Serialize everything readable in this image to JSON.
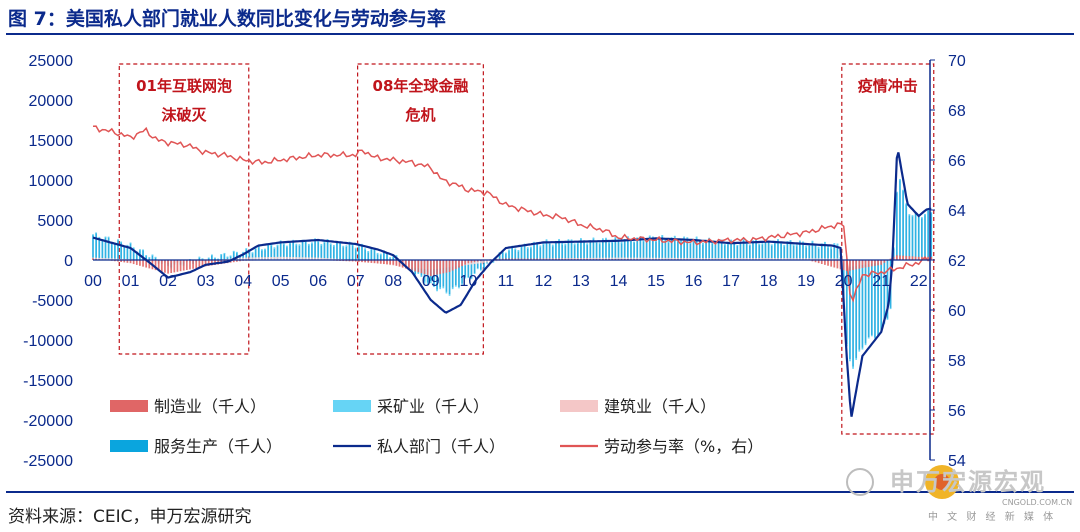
{
  "title": "图 7：美国私人部门就业人数同比变化与劳动参与率",
  "source": "资料来源：CEIC，申万宏源研究",
  "watermark": {
    "text": "申万宏源宏观",
    "sub": "中 文 财 经 新 媒 体",
    "site": "CNGOLD.COM.CN"
  },
  "colors": {
    "title": "#0b2a8c",
    "manufacturing": "#e06666",
    "mining": "#66d4f5",
    "construction": "#f4c7c7",
    "services": "#0aa5de",
    "private": "#0b2a8c",
    "lfpr": "#e05555",
    "annotation": "#c0141b"
  },
  "chart_data": {
    "type": "bar+line",
    "x_tick_labels": [
      "00",
      "01",
      "02",
      "03",
      "04",
      "05",
      "06",
      "07",
      "08",
      "09",
      "10",
      "11",
      "12",
      "13",
      "14",
      "15",
      "16",
      "17",
      "18",
      "19",
      "20",
      "21",
      "22"
    ],
    "left_axis": {
      "range": [
        -25000,
        25000
      ],
      "ticks": [
        "25000",
        "20000",
        "15000",
        "10000",
        "5000",
        "0",
        "-5000",
        "-10000",
        "-15000",
        "-20000",
        "-25000"
      ]
    },
    "right_axis": {
      "range": [
        54,
        70
      ],
      "ticks": [
        "70",
        "68",
        "66",
        "64",
        "62",
        "60",
        "58",
        "56",
        "54"
      ]
    },
    "annotations": [
      {
        "line1": "01年互联网泡",
        "line2": "沫破灭",
        "x_range": [
          0.7,
          4.15
        ]
      },
      {
        "line1": "08年全球金融",
        "line2": "危机",
        "x_range": [
          7.05,
          10.4
        ]
      },
      {
        "line1": "疫情冲击",
        "line2": "",
        "x_range": [
          19.95,
          22.4
        ]
      }
    ],
    "legend": [
      {
        "key": "manufacturing",
        "label": "制造业（千人）",
        "kind": "bar"
      },
      {
        "key": "mining",
        "label": "采矿业（千人）",
        "kind": "bar"
      },
      {
        "key": "construction",
        "label": "建筑业（千人）",
        "kind": "bar"
      },
      {
        "key": "services",
        "label": "服务生产（千人）",
        "kind": "bar"
      },
      {
        "key": "private",
        "label": "私人部门（千人）",
        "kind": "line"
      },
      {
        "key": "lfpr",
        "label": "劳动参与率（%，右）",
        "kind": "line"
      }
    ],
    "series": {
      "private_keypoints": [
        [
          0,
          2800
        ],
        [
          1,
          1500
        ],
        [
          1.5,
          -300
        ],
        [
          2,
          -2200
        ],
        [
          2.6,
          -1500
        ],
        [
          3,
          -600
        ],
        [
          3.6,
          -200
        ],
        [
          4,
          700
        ],
        [
          4.4,
          1800
        ],
        [
          5,
          2200
        ],
        [
          6,
          2500
        ],
        [
          7,
          2000
        ],
        [
          7.6,
          1300
        ],
        [
          8,
          600
        ],
        [
          8.5,
          -1500
        ],
        [
          9,
          -5000
        ],
        [
          9.4,
          -6600
        ],
        [
          9.8,
          -5600
        ],
        [
          10.2,
          -2500
        ],
        [
          10.6,
          -300
        ],
        [
          11,
          1500
        ],
        [
          12,
          2200
        ],
        [
          13,
          2300
        ],
        [
          14,
          2400
        ],
        [
          15,
          2700
        ],
        [
          16,
          2500
        ],
        [
          17,
          2100
        ],
        [
          18,
          2300
        ],
        [
          19,
          2000
        ],
        [
          19.7,
          1800
        ],
        [
          19.92,
          1500
        ],
        [
          20.08,
          -12000
        ],
        [
          20.2,
          -19800
        ],
        [
          20.5,
          -12000
        ],
        [
          21,
          -9000
        ],
        [
          21.2,
          -5500
        ],
        [
          21.3,
          0
        ],
        [
          21.43,
          14200
        ],
        [
          21.55,
          11000
        ],
        [
          21.7,
          7000
        ],
        [
          22,
          5500
        ],
        [
          22.2,
          6300
        ],
        [
          22.3,
          6400
        ]
      ],
      "services_keypoints": [
        [
          0,
          3200
        ],
        [
          1,
          1800
        ],
        [
          2,
          -600
        ],
        [
          3,
          200
        ],
        [
          4,
          1000
        ],
        [
          5,
          2000
        ],
        [
          6,
          2300
        ],
        [
          7,
          1800
        ],
        [
          8,
          500
        ],
        [
          9,
          -3000
        ],
        [
          9.5,
          -4000
        ],
        [
          10,
          -2200
        ],
        [
          10.6,
          -200
        ],
        [
          11,
          1200
        ],
        [
          12,
          2100
        ],
        [
          13,
          2300
        ],
        [
          14,
          2500
        ],
        [
          15,
          2800
        ],
        [
          16,
          2600
        ],
        [
          17,
          2200
        ],
        [
          18,
          2300
        ],
        [
          19,
          2100
        ],
        [
          19.9,
          1800
        ],
        [
          20.1,
          -12000
        ],
        [
          20.25,
          -13000
        ],
        [
          20.6,
          -10000
        ],
        [
          21,
          -9000
        ],
        [
          21.25,
          -6000
        ],
        [
          21.32,
          0
        ],
        [
          21.45,
          11500
        ],
        [
          21.7,
          6000
        ],
        [
          22,
          5500
        ],
        [
          22.3,
          6000
        ]
      ],
      "manufacturing_keypoints": [
        [
          0,
          200
        ],
        [
          1,
          -400
        ],
        [
          2,
          -1700
        ],
        [
          3,
          -800
        ],
        [
          4,
          -100
        ],
        [
          5,
          0
        ],
        [
          6,
          0
        ],
        [
          7,
          -200
        ],
        [
          8,
          -600
        ],
        [
          9,
          -2000
        ],
        [
          9.5,
          -1500
        ],
        [
          10,
          -400
        ],
        [
          10.6,
          100
        ],
        [
          11,
          200
        ],
        [
          15,
          100
        ],
        [
          19,
          50
        ],
        [
          20.1,
          -1400
        ],
        [
          20.5,
          -1000
        ],
        [
          21,
          -600
        ],
        [
          21.4,
          600
        ],
        [
          22,
          400
        ],
        [
          22.3,
          400
        ]
      ],
      "mining_keypoints": [
        [
          0,
          0
        ],
        [
          1,
          30
        ],
        [
          2,
          -60
        ],
        [
          5,
          100
        ],
        [
          8,
          80
        ],
        [
          9,
          -120
        ],
        [
          10,
          0
        ],
        [
          12,
          130
        ],
        [
          14,
          90
        ],
        [
          15,
          -80
        ],
        [
          16,
          -150
        ],
        [
          17,
          0
        ],
        [
          20.1,
          -150
        ],
        [
          21.4,
          60
        ],
        [
          22.3,
          50
        ]
      ],
      "construction_keypoints": [
        [
          0,
          300
        ],
        [
          1,
          100
        ],
        [
          2,
          -400
        ],
        [
          3,
          -100
        ],
        [
          4,
          300
        ],
        [
          5,
          400
        ],
        [
          6,
          300
        ],
        [
          7,
          0
        ],
        [
          8,
          -700
        ],
        [
          9,
          -1200
        ],
        [
          10,
          -600
        ],
        [
          11,
          0
        ],
        [
          12,
          200
        ],
        [
          14,
          300
        ],
        [
          16,
          250
        ],
        [
          18,
          250
        ],
        [
          19.9,
          200
        ],
        [
          20.1,
          -900
        ],
        [
          21,
          -300
        ],
        [
          21.4,
          500
        ],
        [
          22.3,
          300
        ]
      ],
      "lfpr_keypoints": [
        [
          0,
          67.3
        ],
        [
          0.6,
          67.1
        ],
        [
          1,
          66.9
        ],
        [
          1.4,
          67.2
        ],
        [
          1.7,
          66.8
        ],
        [
          2,
          66.7
        ],
        [
          2.5,
          66.6
        ],
        [
          3,
          66.3
        ],
        [
          3.5,
          66.2
        ],
        [
          4,
          66.0
        ],
        [
          4.5,
          65.9
        ],
        [
          5,
          66.0
        ],
        [
          6,
          66.2
        ],
        [
          7,
          66.2
        ],
        [
          7.2,
          66.4
        ],
        [
          7.5,
          66.1
        ],
        [
          8,
          66.0
        ],
        [
          8.5,
          65.9
        ],
        [
          9,
          65.7
        ],
        [
          9.3,
          65.2
        ],
        [
          9.7,
          65.0
        ],
        [
          10,
          64.8
        ],
        [
          10.5,
          64.7
        ],
        [
          11,
          64.2
        ],
        [
          12,
          63.8
        ],
        [
          12.5,
          63.7
        ],
        [
          13,
          63.4
        ],
        [
          13.6,
          63.2
        ],
        [
          14,
          62.9
        ],
        [
          15,
          62.8
        ],
        [
          16,
          62.7
        ],
        [
          17,
          62.8
        ],
        [
          17.5,
          62.8
        ],
        [
          18,
          62.9
        ],
        [
          19,
          63.1
        ],
        [
          19.8,
          63.4
        ],
        [
          20.0,
          63.4
        ],
        [
          20.2,
          60.2
        ],
        [
          20.5,
          61.4
        ],
        [
          21,
          61.5
        ],
        [
          21.5,
          61.7
        ],
        [
          22,
          61.9
        ],
        [
          22.3,
          62.1
        ]
      ]
    }
  }
}
